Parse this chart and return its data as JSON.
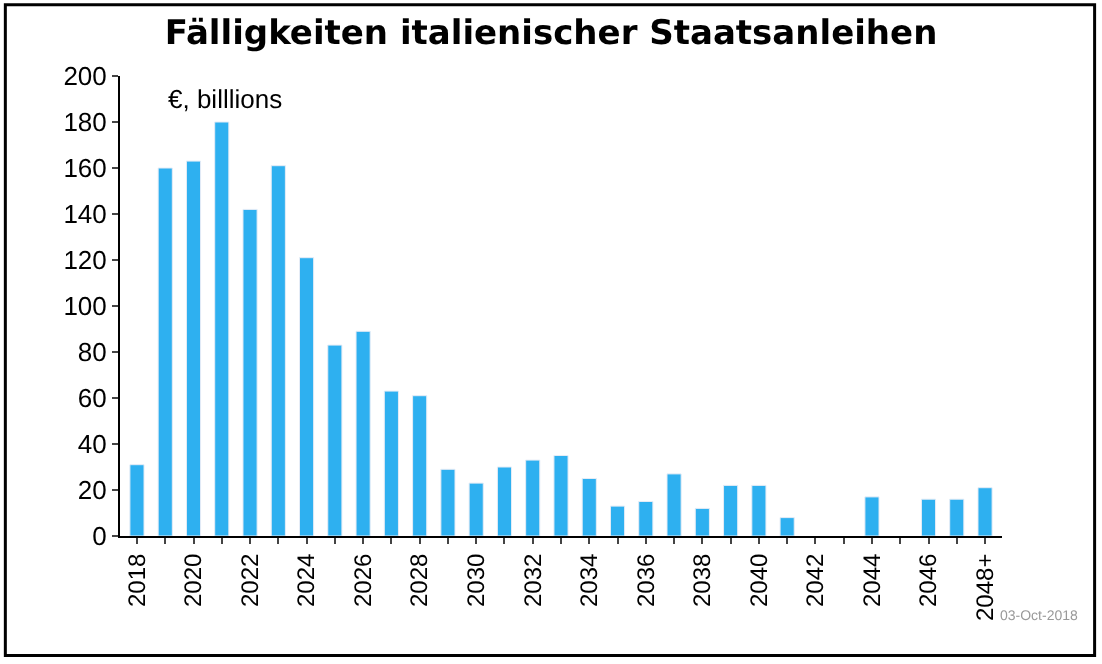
{
  "chart_data": {
    "type": "bar",
    "title": "Fälligkeiten italienischer Staatsanleihen",
    "categories": [
      "2018",
      null,
      "2020",
      null,
      "2022",
      null,
      "2024",
      null,
      "2026",
      null,
      "2028",
      null,
      "2030",
      null,
      "2032",
      null,
      "2034",
      null,
      "2036",
      null,
      "2038",
      null,
      "2040",
      null,
      "2042",
      null,
      "2044",
      null,
      "2046",
      null,
      "2048+"
    ],
    "values": [
      31,
      160,
      163,
      180,
      142,
      161,
      121,
      83,
      89,
      63,
      61,
      29,
      23,
      30,
      33,
      35,
      25,
      13,
      15,
      27,
      12,
      22,
      22,
      8,
      null,
      null,
      17,
      null,
      16,
      16,
      21
    ],
    "color": "#2eb0f0",
    "ylim": [
      0,
      200
    ],
    "yticks": [
      0,
      20,
      40,
      60,
      80,
      100,
      120,
      140,
      160,
      180,
      200
    ],
    "annotations": [
      "€, billlions",
      "03-Oct-2018"
    ]
  }
}
